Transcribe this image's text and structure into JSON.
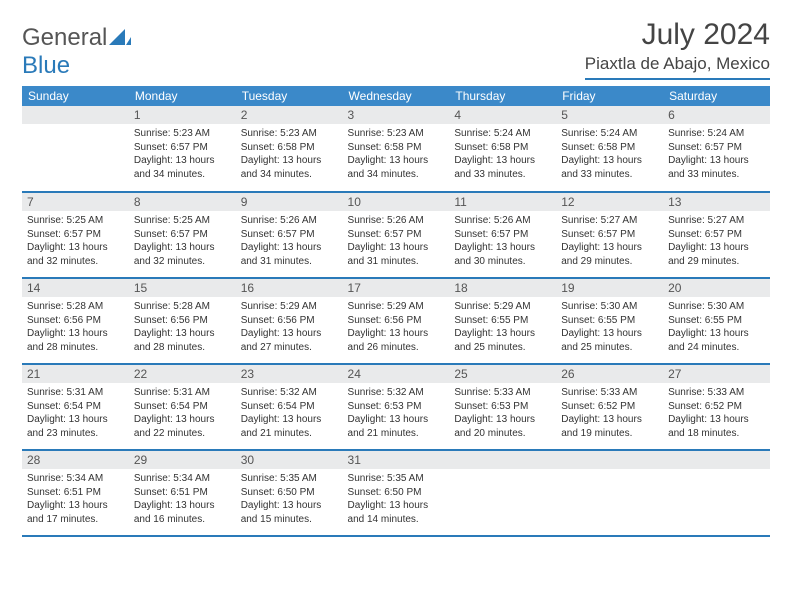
{
  "logo": {
    "text1": "General",
    "text2": "Blue"
  },
  "title": "July 2024",
  "location": "Piaxtla de Abajo, Mexico",
  "colors": {
    "header_bg": "#3b89c9",
    "header_text": "#ffffff",
    "accent_line": "#2a7ab9",
    "daynum_bg": "#e9eaeb",
    "text": "#333333",
    "title_text": "#444444"
  },
  "dow": [
    "Sunday",
    "Monday",
    "Tuesday",
    "Wednesday",
    "Thursday",
    "Friday",
    "Saturday"
  ],
  "weeks": [
    [
      {
        "num": "",
        "lines": []
      },
      {
        "num": "1",
        "lines": [
          "Sunrise: 5:23 AM",
          "Sunset: 6:57 PM",
          "Daylight: 13 hours and 34 minutes."
        ]
      },
      {
        "num": "2",
        "lines": [
          "Sunrise: 5:23 AM",
          "Sunset: 6:58 PM",
          "Daylight: 13 hours and 34 minutes."
        ]
      },
      {
        "num": "3",
        "lines": [
          "Sunrise: 5:23 AM",
          "Sunset: 6:58 PM",
          "Daylight: 13 hours and 34 minutes."
        ]
      },
      {
        "num": "4",
        "lines": [
          "Sunrise: 5:24 AM",
          "Sunset: 6:58 PM",
          "Daylight: 13 hours and 33 minutes."
        ]
      },
      {
        "num": "5",
        "lines": [
          "Sunrise: 5:24 AM",
          "Sunset: 6:58 PM",
          "Daylight: 13 hours and 33 minutes."
        ]
      },
      {
        "num": "6",
        "lines": [
          "Sunrise: 5:24 AM",
          "Sunset: 6:57 PM",
          "Daylight: 13 hours and 33 minutes."
        ]
      }
    ],
    [
      {
        "num": "7",
        "lines": [
          "Sunrise: 5:25 AM",
          "Sunset: 6:57 PM",
          "Daylight: 13 hours and 32 minutes."
        ]
      },
      {
        "num": "8",
        "lines": [
          "Sunrise: 5:25 AM",
          "Sunset: 6:57 PM",
          "Daylight: 13 hours and 32 minutes."
        ]
      },
      {
        "num": "9",
        "lines": [
          "Sunrise: 5:26 AM",
          "Sunset: 6:57 PM",
          "Daylight: 13 hours and 31 minutes."
        ]
      },
      {
        "num": "10",
        "lines": [
          "Sunrise: 5:26 AM",
          "Sunset: 6:57 PM",
          "Daylight: 13 hours and 31 minutes."
        ]
      },
      {
        "num": "11",
        "lines": [
          "Sunrise: 5:26 AM",
          "Sunset: 6:57 PM",
          "Daylight: 13 hours and 30 minutes."
        ]
      },
      {
        "num": "12",
        "lines": [
          "Sunrise: 5:27 AM",
          "Sunset: 6:57 PM",
          "Daylight: 13 hours and 29 minutes."
        ]
      },
      {
        "num": "13",
        "lines": [
          "Sunrise: 5:27 AM",
          "Sunset: 6:57 PM",
          "Daylight: 13 hours and 29 minutes."
        ]
      }
    ],
    [
      {
        "num": "14",
        "lines": [
          "Sunrise: 5:28 AM",
          "Sunset: 6:56 PM",
          "Daylight: 13 hours and 28 minutes."
        ]
      },
      {
        "num": "15",
        "lines": [
          "Sunrise: 5:28 AM",
          "Sunset: 6:56 PM",
          "Daylight: 13 hours and 28 minutes."
        ]
      },
      {
        "num": "16",
        "lines": [
          "Sunrise: 5:29 AM",
          "Sunset: 6:56 PM",
          "Daylight: 13 hours and 27 minutes."
        ]
      },
      {
        "num": "17",
        "lines": [
          "Sunrise: 5:29 AM",
          "Sunset: 6:56 PM",
          "Daylight: 13 hours and 26 minutes."
        ]
      },
      {
        "num": "18",
        "lines": [
          "Sunrise: 5:29 AM",
          "Sunset: 6:55 PM",
          "Daylight: 13 hours and 25 minutes."
        ]
      },
      {
        "num": "19",
        "lines": [
          "Sunrise: 5:30 AM",
          "Sunset: 6:55 PM",
          "Daylight: 13 hours and 25 minutes."
        ]
      },
      {
        "num": "20",
        "lines": [
          "Sunrise: 5:30 AM",
          "Sunset: 6:55 PM",
          "Daylight: 13 hours and 24 minutes."
        ]
      }
    ],
    [
      {
        "num": "21",
        "lines": [
          "Sunrise: 5:31 AM",
          "Sunset: 6:54 PM",
          "Daylight: 13 hours and 23 minutes."
        ]
      },
      {
        "num": "22",
        "lines": [
          "Sunrise: 5:31 AM",
          "Sunset: 6:54 PM",
          "Daylight: 13 hours and 22 minutes."
        ]
      },
      {
        "num": "23",
        "lines": [
          "Sunrise: 5:32 AM",
          "Sunset: 6:54 PM",
          "Daylight: 13 hours and 21 minutes."
        ]
      },
      {
        "num": "24",
        "lines": [
          "Sunrise: 5:32 AM",
          "Sunset: 6:53 PM",
          "Daylight: 13 hours and 21 minutes."
        ]
      },
      {
        "num": "25",
        "lines": [
          "Sunrise: 5:33 AM",
          "Sunset: 6:53 PM",
          "Daylight: 13 hours and 20 minutes."
        ]
      },
      {
        "num": "26",
        "lines": [
          "Sunrise: 5:33 AM",
          "Sunset: 6:52 PM",
          "Daylight: 13 hours and 19 minutes."
        ]
      },
      {
        "num": "27",
        "lines": [
          "Sunrise: 5:33 AM",
          "Sunset: 6:52 PM",
          "Daylight: 13 hours and 18 minutes."
        ]
      }
    ],
    [
      {
        "num": "28",
        "lines": [
          "Sunrise: 5:34 AM",
          "Sunset: 6:51 PM",
          "Daylight: 13 hours and 17 minutes."
        ]
      },
      {
        "num": "29",
        "lines": [
          "Sunrise: 5:34 AM",
          "Sunset: 6:51 PM",
          "Daylight: 13 hours and 16 minutes."
        ]
      },
      {
        "num": "30",
        "lines": [
          "Sunrise: 5:35 AM",
          "Sunset: 6:50 PM",
          "Daylight: 13 hours and 15 minutes."
        ]
      },
      {
        "num": "31",
        "lines": [
          "Sunrise: 5:35 AM",
          "Sunset: 6:50 PM",
          "Daylight: 13 hours and 14 minutes."
        ]
      },
      {
        "num": "",
        "lines": []
      },
      {
        "num": "",
        "lines": []
      },
      {
        "num": "",
        "lines": []
      }
    ]
  ]
}
